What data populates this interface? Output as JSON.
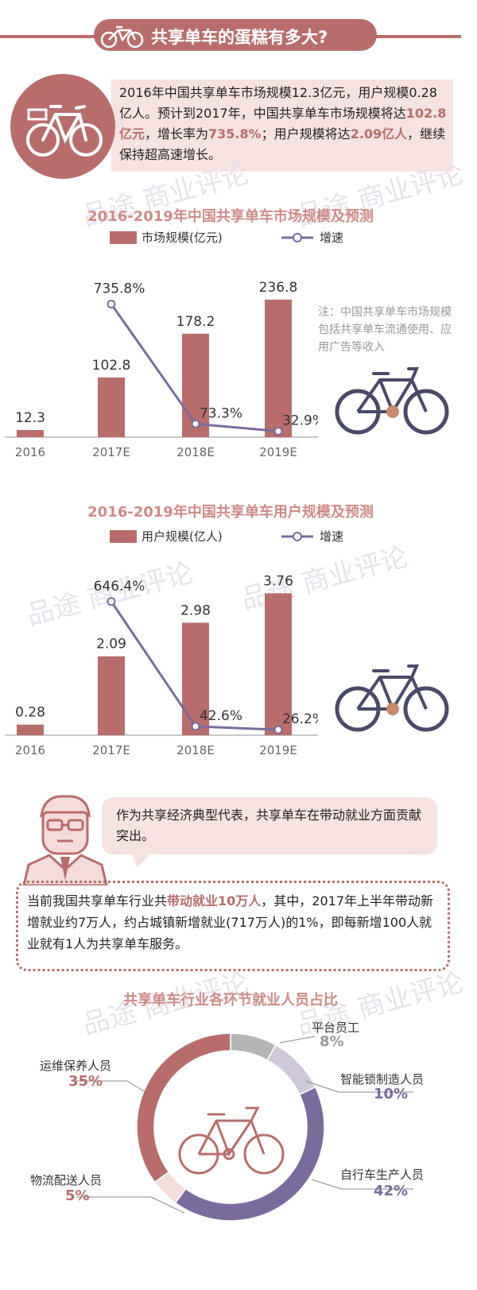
{
  "header": {
    "title": "共享单车的蛋糕有多大?"
  },
  "intro": {
    "t1": "2016年中国共享单车市场规模12.3亿元，用户规模0.28亿人。预计到2017年，中国共享单车市场规模将达",
    "h1": "102.8亿元",
    "t2": "，增长率为",
    "h2": "735.8%",
    "t3": "；用户规模将达",
    "h3": "2.09亿人",
    "t4": "，继续保持超高速增长。"
  },
  "chart_data": [
    {
      "type": "bar",
      "title": "2016-2019年中国共享单车市场规模及预测",
      "categories": [
        "2016",
        "2017E",
        "2018E",
        "2019E"
      ],
      "series": [
        {
          "name": "市场规模(亿元)",
          "type": "bar",
          "values": [
            12.3,
            102.8,
            178.2,
            236.8
          ],
          "labels": [
            "12.3",
            "102.8",
            "178.2",
            "236.8"
          ]
        },
        {
          "name": "增速",
          "type": "line",
          "values": [
            null,
            735.8,
            73.3,
            32.9
          ],
          "labels": [
            "",
            "735.8%",
            "73.3%",
            "32.9%"
          ]
        }
      ],
      "note": "注：中国共享单车市场规模包括共享单车流通使用、应用广告等收入",
      "colors": {
        "bar": "#b86d6b",
        "line": "#7a6b9d"
      }
    },
    {
      "type": "bar",
      "title": "2016-2019年中国共享单车用户规模及预测",
      "categories": [
        "2016",
        "2017E",
        "2018E",
        "2019E"
      ],
      "series": [
        {
          "name": "用户规模(亿人)",
          "type": "bar",
          "values": [
            0.28,
            2.09,
            2.98,
            3.76
          ],
          "labels": [
            "0.28",
            "2.09",
            "2.98",
            "3.76"
          ]
        },
        {
          "name": "增速",
          "type": "line",
          "values": [
            null,
            646.4,
            42.6,
            26.2
          ],
          "labels": [
            "",
            "646.4%",
            "42.6%",
            "26.2%"
          ]
        }
      ],
      "colors": {
        "bar": "#b86d6b",
        "line": "#7a6b9d"
      }
    },
    {
      "type": "pie",
      "title": "共享单车行业各环节就业人员占比",
      "slices": [
        {
          "label": "平台员工",
          "value": 8,
          "pct": "8%",
          "color": "#b5b5b5"
        },
        {
          "label": "智能锁制造人员",
          "value": 10,
          "pct": "10%",
          "color": "#cfc8da"
        },
        {
          "label": "自行车生产人员",
          "value": 42,
          "pct": "42%",
          "color": "#7a6b9d"
        },
        {
          "label": "物流配送人员",
          "value": 5,
          "pct": "5%",
          "color": "#f3dedc"
        },
        {
          "label": "运维保养人员",
          "value": 35,
          "pct": "35%",
          "color": "#b86d6b"
        }
      ]
    }
  ],
  "speech": {
    "text": "作为共享经济典型代表，共享单车在带动就业方面贡献突出。"
  },
  "employment": {
    "t1": "当前我国共享单车行业共",
    "h1": "带动就业10万人",
    "t2": "，其中，2017年上半年带动新增就业约7万人，约占城镇新增就业(717万人)的1%，即每新增100人就业就有1人为共享单车服务。"
  },
  "watermark": {
    "text": "品途 商业评论"
  },
  "colors": {
    "accent": "#b86d6b",
    "purple": "#7a6b9d",
    "pink": "#f6e2e0"
  }
}
